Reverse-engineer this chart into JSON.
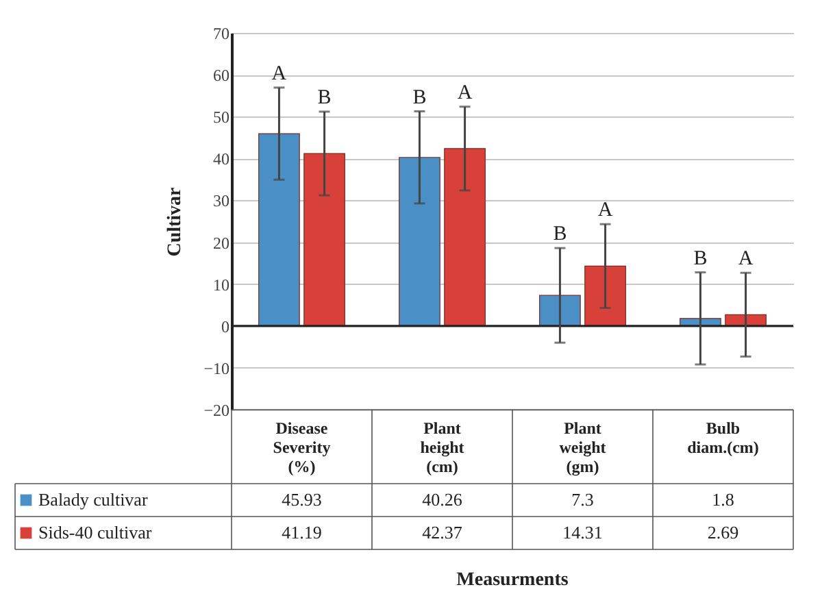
{
  "chart_data": {
    "type": "bar",
    "ylabel": "Cultivar",
    "categories": [
      "Disease Severity (%)",
      "Plant height (cm)",
      "Plant weight (gm)",
      "Bulb diam.(cm)"
    ],
    "series": [
      {
        "name": "Balady cultivar",
        "color": "#4a8fc6",
        "values": [
          45.93,
          40.26,
          7.3,
          1.8
        ],
        "errors": [
          11,
          11,
          11.3,
          11
        ]
      },
      {
        "name": "Sids-40 cultivar",
        "color": "#d8403a",
        "values": [
          41.19,
          42.37,
          14.31,
          2.69
        ],
        "errors": [
          10,
          10,
          10,
          10
        ]
      }
    ],
    "ylim": [
      -20,
      70
    ],
    "yticks": [
      -20,
      -10,
      0,
      10,
      20,
      30,
      40,
      50,
      60,
      70
    ],
    "grid": "y",
    "data_labels": true,
    "legend": "bottom left",
    "annotations": [
      "A",
      "B",
      "B",
      "A",
      "B",
      "A",
      "B",
      "A",
      "Measurments"
    ]
  }
}
